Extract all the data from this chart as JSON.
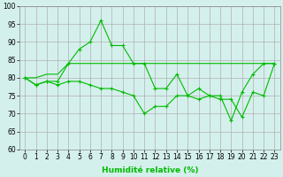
{
  "x": [
    0,
    1,
    2,
    3,
    4,
    5,
    6,
    7,
    8,
    9,
    10,
    11,
    12,
    13,
    14,
    15,
    16,
    17,
    18,
    19,
    20,
    21,
    22,
    23
  ],
  "line_jagged": [
    80,
    78,
    79,
    79,
    84,
    88,
    90,
    96,
    89,
    89,
    84,
    84,
    77,
    77,
    81,
    75,
    77,
    75,
    75,
    68,
    76,
    81,
    84,
    84
  ],
  "line_flat": [
    80,
    80,
    81,
    81,
    84,
    84,
    84,
    84,
    84,
    84,
    84,
    84,
    84,
    84,
    84,
    84,
    84,
    84,
    84,
    84,
    84,
    84,
    84,
    84
  ],
  "line_decline": [
    80,
    78,
    79,
    78,
    79,
    79,
    78,
    77,
    77,
    76,
    75,
    70,
    72,
    72,
    75,
    75,
    74,
    75,
    74,
    74,
    69,
    76,
    75,
    84
  ],
  "xlim": [
    -0.5,
    23.5
  ],
  "ylim": [
    60,
    100
  ],
  "yticks": [
    60,
    65,
    70,
    75,
    80,
    85,
    90,
    95,
    100
  ],
  "xticks": [
    0,
    1,
    2,
    3,
    4,
    5,
    6,
    7,
    8,
    9,
    10,
    11,
    12,
    13,
    14,
    15,
    16,
    17,
    18,
    19,
    20,
    21,
    22,
    23
  ],
  "xlabel": "Humidité relative (%)",
  "line_color": "#00bb00",
  "bg_color": "#d4f0ec",
  "grid_color": "#b0b0b0",
  "tick_fontsize": 5.5,
  "label_fontsize": 6.5
}
